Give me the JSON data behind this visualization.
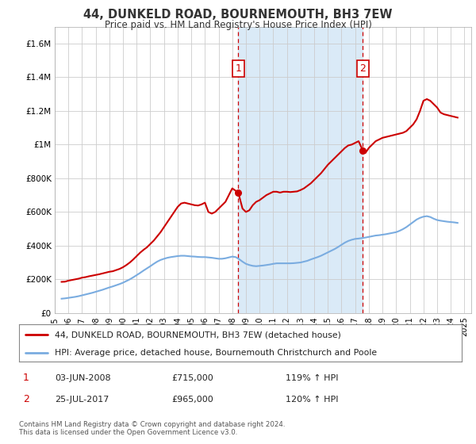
{
  "title": "44, DUNKELD ROAD, BOURNEMOUTH, BH3 7EW",
  "subtitle": "Price paid vs. HM Land Registry's House Price Index (HPI)",
  "red_label": "44, DUNKELD ROAD, BOURNEMOUTH, BH3 7EW (detached house)",
  "blue_label": "HPI: Average price, detached house, Bournemouth Christchurch and Poole",
  "annotation1_date": "03-JUN-2008",
  "annotation1_price": "£715,000",
  "annotation1_hpi": "119% ↑ HPI",
  "annotation2_date": "25-JUL-2017",
  "annotation2_price": "£965,000",
  "annotation2_hpi": "120% ↑ HPI",
  "footer": "Contains HM Land Registry data © Crown copyright and database right 2024.\nThis data is licensed under the Open Government Licence v3.0.",
  "red_color": "#cc0000",
  "blue_color": "#7aace0",
  "shaded_color": "#daeaf7",
  "annotation_color": "#cc0000",
  "grid_color": "#cccccc",
  "background_color": "#ffffff",
  "ylim": [
    0,
    1700000
  ],
  "yticks": [
    0,
    200000,
    400000,
    600000,
    800000,
    1000000,
    1200000,
    1400000,
    1600000
  ],
  "ytick_labels": [
    "£0",
    "£200K",
    "£400K",
    "£600K",
    "£800K",
    "£1M",
    "£1.2M",
    "£1.4M",
    "£1.6M"
  ],
  "red_x": [
    1995.5,
    1995.75,
    1996.0,
    1996.25,
    1996.5,
    1996.75,
    1997.0,
    1997.25,
    1997.5,
    1997.75,
    1998.0,
    1998.25,
    1998.5,
    1998.75,
    1999.0,
    1999.25,
    1999.5,
    1999.75,
    2000.0,
    2000.25,
    2000.5,
    2000.75,
    2001.0,
    2001.25,
    2001.5,
    2001.75,
    2002.0,
    2002.25,
    2002.5,
    2002.75,
    2003.0,
    2003.25,
    2003.5,
    2003.75,
    2004.0,
    2004.25,
    2004.5,
    2004.75,
    2005.0,
    2005.25,
    2005.5,
    2005.75,
    2006.0,
    2006.25,
    2006.5,
    2006.75,
    2007.0,
    2007.25,
    2007.5,
    2007.75,
    2008.0,
    2008.44,
    2008.75,
    2009.0,
    2009.25,
    2009.5,
    2009.75,
    2010.0,
    2010.25,
    2010.5,
    2010.75,
    2011.0,
    2011.25,
    2011.5,
    2011.75,
    2012.0,
    2012.25,
    2012.5,
    2012.75,
    2013.0,
    2013.25,
    2013.5,
    2013.75,
    2014.0,
    2014.25,
    2014.5,
    2014.75,
    2015.0,
    2015.25,
    2015.5,
    2015.75,
    2016.0,
    2016.25,
    2016.5,
    2016.75,
    2017.0,
    2017.25,
    2017.56,
    2017.75,
    2018.0,
    2018.25,
    2018.5,
    2018.75,
    2019.0,
    2019.25,
    2019.5,
    2019.75,
    2020.0,
    2020.25,
    2020.5,
    2020.75,
    2021.0,
    2021.25,
    2021.5,
    2021.75,
    2022.0,
    2022.25,
    2022.5,
    2022.75,
    2023.0,
    2023.25,
    2023.5,
    2023.75,
    2024.0,
    2024.25,
    2024.5
  ],
  "red_y": [
    185000,
    186000,
    192000,
    196000,
    200000,
    204000,
    210000,
    213000,
    218000,
    222000,
    226000,
    230000,
    235000,
    240000,
    245000,
    248000,
    255000,
    262000,
    272000,
    285000,
    300000,
    318000,
    338000,
    358000,
    375000,
    390000,
    410000,
    430000,
    455000,
    480000,
    510000,
    540000,
    570000,
    600000,
    630000,
    650000,
    655000,
    650000,
    645000,
    640000,
    638000,
    645000,
    655000,
    600000,
    590000,
    600000,
    620000,
    640000,
    660000,
    700000,
    740000,
    715000,
    620000,
    600000,
    610000,
    640000,
    660000,
    670000,
    685000,
    700000,
    710000,
    720000,
    720000,
    715000,
    720000,
    720000,
    718000,
    720000,
    722000,
    730000,
    740000,
    755000,
    770000,
    790000,
    810000,
    830000,
    855000,
    880000,
    900000,
    920000,
    940000,
    960000,
    980000,
    995000,
    1000000,
    1010000,
    1020000,
    965000,
    950000,
    980000,
    1000000,
    1020000,
    1030000,
    1040000,
    1045000,
    1050000,
    1055000,
    1060000,
    1065000,
    1070000,
    1080000,
    1100000,
    1120000,
    1150000,
    1200000,
    1260000,
    1270000,
    1260000,
    1240000,
    1220000,
    1190000,
    1180000,
    1175000,
    1170000,
    1165000,
    1160000
  ],
  "blue_x": [
    1995.5,
    1995.75,
    1996.0,
    1996.25,
    1996.5,
    1996.75,
    1997.0,
    1997.25,
    1997.5,
    1997.75,
    1998.0,
    1998.25,
    1998.5,
    1998.75,
    1999.0,
    1999.25,
    1999.5,
    1999.75,
    2000.0,
    2000.25,
    2000.5,
    2000.75,
    2001.0,
    2001.25,
    2001.5,
    2001.75,
    2002.0,
    2002.25,
    2002.5,
    2002.75,
    2003.0,
    2003.25,
    2003.5,
    2003.75,
    2004.0,
    2004.25,
    2004.5,
    2004.75,
    2005.0,
    2005.25,
    2005.5,
    2005.75,
    2006.0,
    2006.25,
    2006.5,
    2006.75,
    2007.0,
    2007.25,
    2007.5,
    2007.75,
    2008.0,
    2008.25,
    2008.5,
    2008.75,
    2009.0,
    2009.25,
    2009.5,
    2009.75,
    2010.0,
    2010.25,
    2010.5,
    2010.75,
    2011.0,
    2011.25,
    2011.5,
    2011.75,
    2012.0,
    2012.25,
    2012.5,
    2012.75,
    2013.0,
    2013.25,
    2013.5,
    2013.75,
    2014.0,
    2014.25,
    2014.5,
    2014.75,
    2015.0,
    2015.25,
    2015.5,
    2015.75,
    2016.0,
    2016.25,
    2016.5,
    2016.75,
    2017.0,
    2017.25,
    2017.5,
    2017.75,
    2018.0,
    2018.25,
    2018.5,
    2018.75,
    2019.0,
    2019.25,
    2019.5,
    2019.75,
    2020.0,
    2020.25,
    2020.5,
    2020.75,
    2021.0,
    2021.25,
    2021.5,
    2021.75,
    2022.0,
    2022.25,
    2022.5,
    2022.75,
    2023.0,
    2023.25,
    2023.5,
    2023.75,
    2024.0,
    2024.25,
    2024.5
  ],
  "blue_y": [
    85000,
    87000,
    90000,
    93000,
    96000,
    100000,
    105000,
    110000,
    115000,
    120000,
    126000,
    132000,
    138000,
    145000,
    152000,
    158000,
    165000,
    172000,
    180000,
    190000,
    200000,
    212000,
    225000,
    238000,
    252000,
    265000,
    278000,
    292000,
    305000,
    315000,
    322000,
    328000,
    332000,
    335000,
    338000,
    340000,
    340000,
    338000,
    336000,
    335000,
    333000,
    332000,
    332000,
    330000,
    328000,
    325000,
    322000,
    322000,
    325000,
    330000,
    335000,
    332000,
    320000,
    305000,
    292000,
    285000,
    280000,
    278000,
    280000,
    282000,
    285000,
    288000,
    292000,
    295000,
    295000,
    295000,
    295000,
    295000,
    296000,
    298000,
    300000,
    305000,
    310000,
    318000,
    325000,
    332000,
    340000,
    350000,
    360000,
    370000,
    380000,
    392000,
    405000,
    418000,
    428000,
    435000,
    440000,
    442000,
    445000,
    448000,
    452000,
    456000,
    460000,
    462000,
    465000,
    468000,
    472000,
    476000,
    480000,
    488000,
    498000,
    510000,
    525000,
    540000,
    555000,
    565000,
    572000,
    575000,
    570000,
    560000,
    552000,
    548000,
    545000,
    542000,
    540000,
    538000,
    535000
  ],
  "sale1_x": 2008.44,
  "sale1_y": 715000,
  "sale2_x": 2017.56,
  "sale2_y": 965000,
  "xmin": 1995,
  "xmax": 2025.5,
  "xtick_years": [
    1995,
    1996,
    1997,
    1998,
    1999,
    2000,
    2001,
    2002,
    2003,
    2004,
    2005,
    2006,
    2007,
    2008,
    2009,
    2010,
    2011,
    2012,
    2013,
    2014,
    2015,
    2016,
    2017,
    2018,
    2019,
    2020,
    2021,
    2022,
    2023,
    2024,
    2025
  ]
}
